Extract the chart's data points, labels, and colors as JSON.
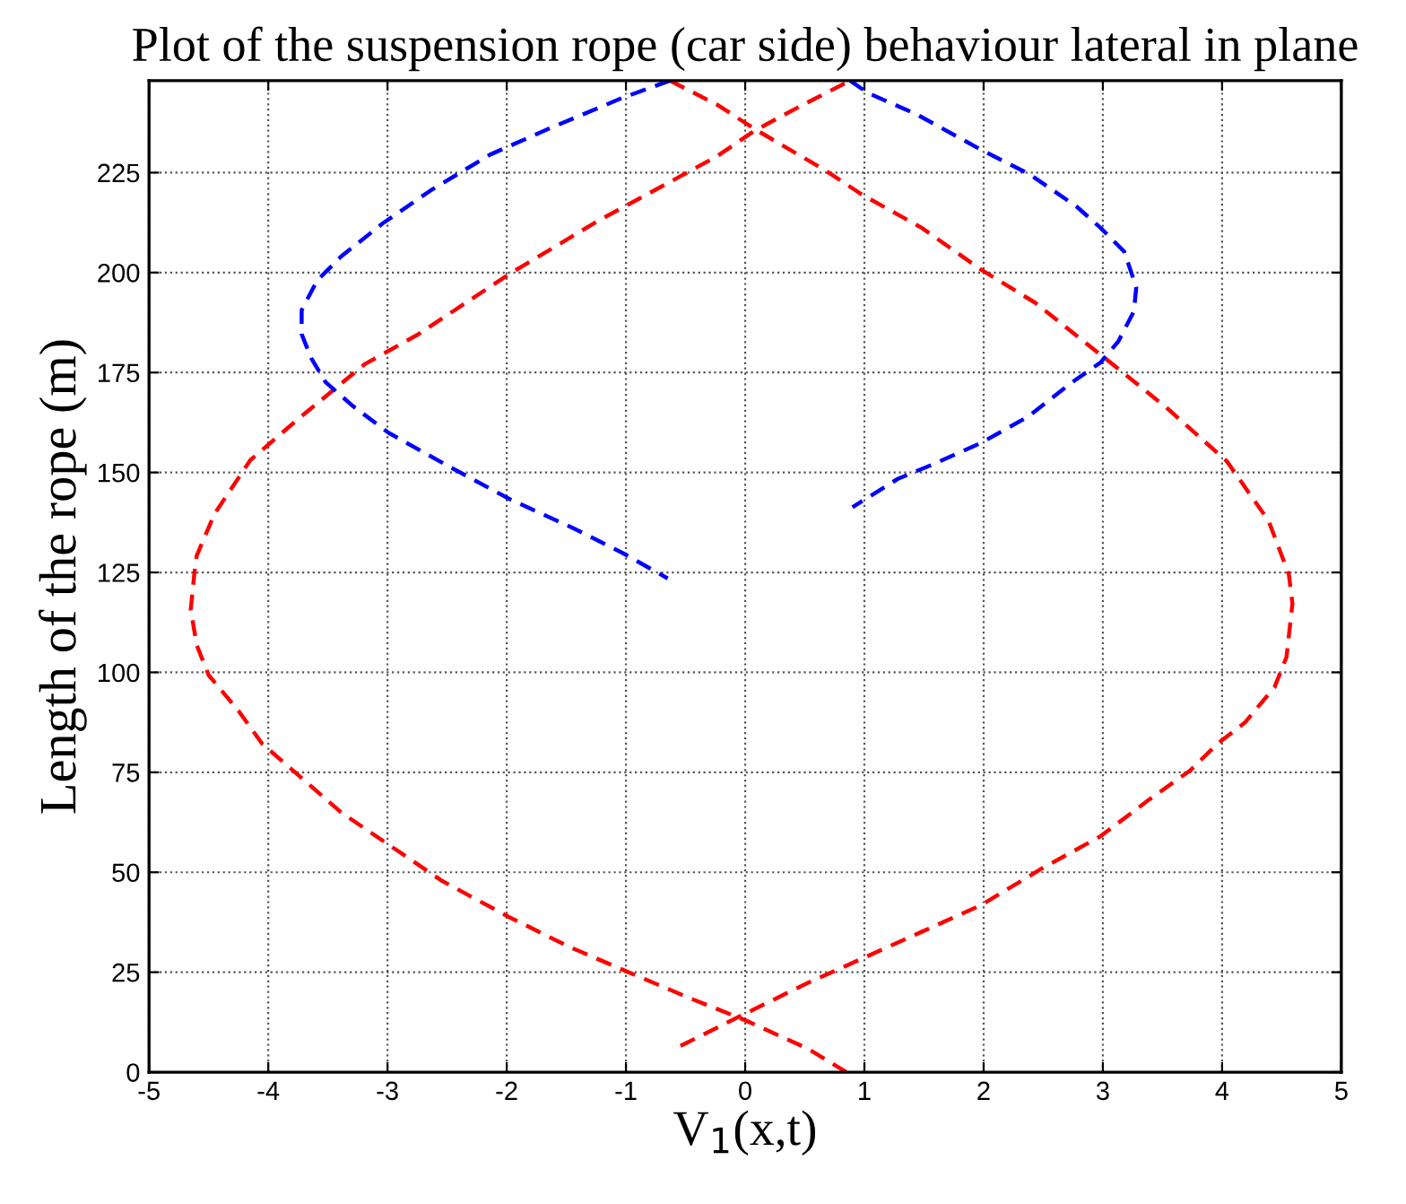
{
  "chart_data": {
    "type": "line",
    "title": "Plot of the suspension rope (car side) behaviour lateral in plane",
    "xlabel": "V$_{1}$(x,t)",
    "ylabel": "Length of the rope (m)",
    "xlim": [
      -5,
      5
    ],
    "ylim": [
      0,
      248
    ],
    "xticks": [
      -5,
      -4,
      -3,
      -2,
      -1,
      0,
      1,
      2,
      3,
      4,
      5
    ],
    "yticks": [
      0,
      25,
      50,
      75,
      100,
      125,
      150,
      175,
      200,
      225
    ],
    "grid": true,
    "line_style": "dashed",
    "series": [
      {
        "color": "#ff0000",
        "x": [
          0.85,
          0.53,
          0.0,
          -0.48,
          -1.01,
          -1.48,
          -1.98,
          -2.54,
          -3.02,
          -3.39,
          -3.79,
          -4.05,
          -4.25,
          -4.5,
          -4.6,
          -4.65,
          -4.62,
          -4.6,
          -4.45,
          -4.15,
          -3.74,
          -3.19,
          -2.74,
          -1.98,
          -1.23,
          -0.58,
          -0.23,
          0.08,
          0.48,
          0.88
        ],
        "values": [
          0,
          5.8,
          13,
          18.7,
          25.4,
          31.4,
          38.8,
          47.8,
          57.5,
          65,
          75.4,
          82.1,
          90.4,
          99.3,
          106.8,
          115.7,
          124.7,
          129.2,
          139.7,
          153.1,
          163.6,
          177.1,
          184.6,
          199.6,
          213,
          223.5,
          229.2,
          235.5,
          241.9,
          248
        ]
      },
      {
        "color": "#ff0000",
        "x": [
          -0.63,
          -0.23,
          0.08,
          0.68,
          0.98,
          1.48,
          1.98,
          2.43,
          3.03,
          3.53,
          4.04,
          4.39,
          4.56,
          4.59,
          4.54,
          4.44,
          4.19,
          3.96,
          3.73,
          3.38,
          2.98,
          2.48,
          1.98,
          1.48,
          0.98,
          0.53,
          -0.03,
          -0.58
        ],
        "values": [
          248,
          241.9,
          235.9,
          225.4,
          219.5,
          211.2,
          200.7,
          192.5,
          178.3,
          166.3,
          152.8,
          137.9,
          124.5,
          117.2,
          103.8,
          96.3,
          87.4,
          82.1,
          75.4,
          68,
          59,
          50.8,
          41.8,
          35.1,
          28.4,
          22.4,
          14.2,
          6
        ]
      },
      {
        "color": "#0000ff",
        "x": [
          -0.63,
          -1.03,
          -1.63,
          -2.14,
          -2.64,
          -3.04,
          -3.39,
          -3.59,
          -3.72,
          -3.72,
          -3.64,
          -3.52,
          -3.29,
          -2.99,
          -2.49,
          -1.98,
          -1.43,
          -1.03,
          -0.65
        ],
        "values": [
          248,
          243.7,
          236.2,
          229.5,
          220.5,
          212.3,
          204,
          198,
          190.6,
          184.6,
          178.6,
          172.6,
          166.6,
          159.9,
          151.6,
          143.4,
          135.9,
          129.9,
          123.5
        ]
      },
      {
        "color": "#0000ff",
        "x": [
          0.88,
          1.03,
          1.43,
          1.98,
          2.38,
          2.78,
          2.98,
          3.18,
          3.28,
          3.26,
          3.13,
          2.98,
          2.73,
          2.38,
          1.98,
          1.58,
          1.28,
          0.9
        ],
        "values": [
          248,
          244.9,
          239.7,
          230.7,
          224.7,
          216.5,
          211.2,
          205.2,
          196.3,
          190.3,
          182.8,
          177.5,
          172.3,
          164.1,
          157.4,
          152.1,
          148.4,
          141.3
        ]
      }
    ]
  }
}
